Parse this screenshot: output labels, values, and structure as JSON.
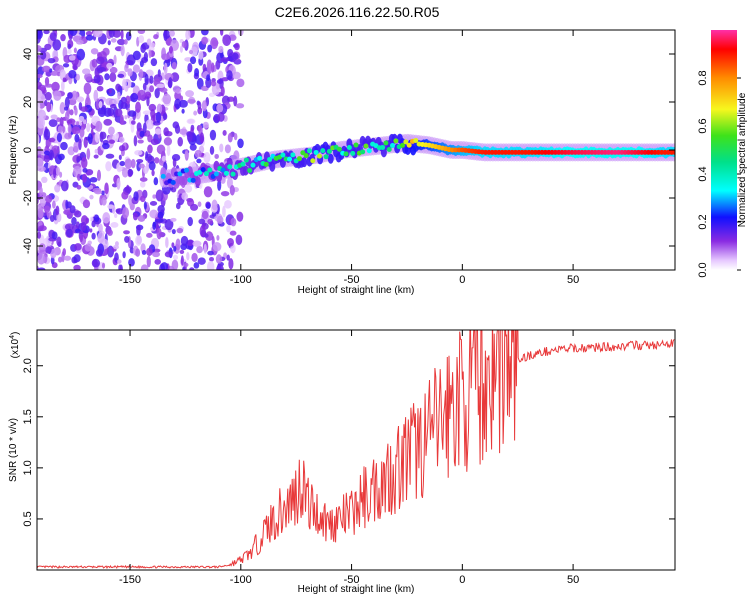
{
  "title": "C2E6.2026.116.22.50.R05",
  "chart_data": [
    {
      "type": "heatmap",
      "xlabel": "Height of straight line (km)",
      "ylabel": "Frequency (Hz)",
      "xlim": [
        -192,
        96
      ],
      "ylim": [
        -50,
        50
      ],
      "xticks": [
        -150,
        -100,
        -50,
        0,
        50
      ],
      "yticks": [
        -40,
        -20,
        0,
        20,
        40
      ],
      "colorbar": {
        "label": "Normalized spectral amplitude",
        "range": [
          0,
          1
        ],
        "ticks": [
          0.0,
          0.2,
          0.4,
          0.6,
          0.8
        ],
        "tick_labels": [
          "0.0",
          "0.2",
          "0.4",
          "0.6",
          "0.8"
        ]
      },
      "ridge": {
        "x": [
          -135,
          -125,
          -115,
          -105,
          -95,
          -85,
          -75,
          -65,
          -55,
          -45,
          -35,
          -25,
          -15,
          -5,
          0,
          10,
          30,
          50,
          70,
          90
        ],
        "frequency": [
          -12,
          -11,
          -10,
          -8,
          -6,
          -4,
          -3,
          -2,
          0,
          1,
          2,
          3,
          2,
          0,
          0,
          -1,
          -1,
          -1,
          -1,
          -1
        ],
        "amplitude": [
          0.25,
          0.3,
          0.35,
          0.4,
          0.45,
          0.5,
          0.5,
          0.55,
          0.55,
          0.5,
          0.5,
          0.6,
          0.7,
          0.8,
          0.85,
          0.9,
          0.9,
          0.95,
          0.98,
          0.9
        ]
      },
      "noise_region": {
        "x_from": -192,
        "x_to": -110,
        "amplitude": 0.1
      }
    },
    {
      "type": "line",
      "xlabel": "Height of straight line (km)",
      "ylabel": "SNR (10 * v/v)",
      "scale_label": "(x10",
      "scale_exponent": "4",
      "xlim": [
        -192,
        96
      ],
      "ylim": [
        0,
        23500
      ],
      "xticks": [
        -150,
        -100,
        -50,
        0,
        50
      ],
      "ytick_values": [
        5000,
        10000,
        15000,
        20000
      ],
      "ytick_labels": [
        "0.5",
        "1.0",
        "1.5",
        "2.0"
      ],
      "series": [
        {
          "name": "SNR",
          "color": "#e8393a",
          "x": [
            -192,
            -110,
            -105,
            -100,
            -95,
            -90,
            -85,
            -80,
            -75,
            -72,
            -70,
            -65,
            -60,
            -55,
            -50,
            -45,
            -40,
            -35,
            -30,
            -25,
            -20,
            -15,
            -10,
            -5,
            0,
            5,
            10,
            15,
            20,
            25,
            30,
            40,
            50,
            60,
            70,
            80,
            90,
            96
          ],
          "y": [
            300,
            300,
            500,
            1000,
            1800,
            3500,
            5000,
            6000,
            7500,
            9000,
            6500,
            5500,
            4500,
            5000,
            5500,
            7000,
            8000,
            9000,
            10000,
            11000,
            12000,
            13000,
            14500,
            16000,
            17000,
            18000,
            18500,
            19500,
            20000,
            20500,
            21000,
            21500,
            21700,
            21800,
            21900,
            22000,
            22000,
            22200
          ]
        }
      ]
    }
  ],
  "colors": {
    "signal": "#e8393a",
    "noise": "#7b2ff7"
  }
}
